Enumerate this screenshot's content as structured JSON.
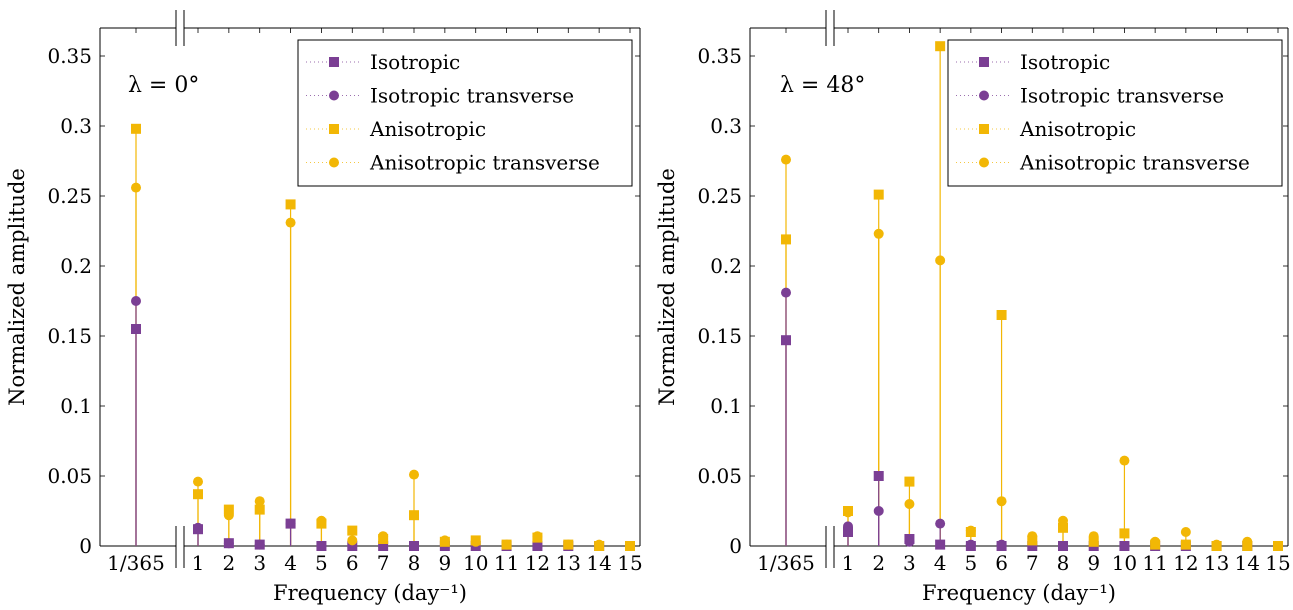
{
  "colors": {
    "isotropic": "#7b3f94",
    "anisotropic": "#f2b705"
  },
  "chart_data": [
    {
      "type": "stem",
      "annotation": "λ = 0°",
      "xlabel": "Frequency (day⁻¹)",
      "ylabel": "Normalized amplitude",
      "categories": [
        "1/365",
        "1",
        "2",
        "3",
        "4",
        "5",
        "6",
        "7",
        "8",
        "9",
        "10",
        "11",
        "12",
        "13",
        "14",
        "15"
      ],
      "ylim": [
        0,
        0.37
      ],
      "yticks": [
        "0",
        "0.05",
        "0.1",
        "0.15",
        "0.2",
        "0.25",
        "0.3",
        "0.35"
      ],
      "ytick_values": [
        0,
        0.05,
        0.1,
        0.15,
        0.2,
        0.25,
        0.3,
        0.35
      ],
      "legend": {
        "position": "top-right",
        "entries": [
          "Isotropic",
          "Isotropic transverse",
          "Anisotropic",
          "Anisotropic transverse"
        ]
      },
      "series": [
        {
          "name": "Isotropic",
          "marker": "square",
          "color": "#7b3f94",
          "values": [
            0.155,
            0.012,
            0.002,
            0.001,
            0.016,
            0.0,
            0.0,
            0.0,
            0.0,
            0.0,
            0.0,
            0.0,
            0.0,
            0.0,
            0.0,
            0.0
          ]
        },
        {
          "name": "Isotropic transverse",
          "marker": "circle",
          "color": "#7b3f94",
          "values": [
            0.175,
            0.013,
            0.002,
            0.001,
            0.016,
            0.0,
            0.0,
            0.0,
            0.0,
            0.0,
            0.0,
            0.0,
            0.0,
            0.0,
            0.0,
            0.0
          ]
        },
        {
          "name": "Anisotropic",
          "marker": "square",
          "color": "#f2b705",
          "values": [
            0.298,
            0.037,
            0.026,
            0.026,
            0.244,
            0.016,
            0.011,
            0.005,
            0.022,
            0.003,
            0.004,
            0.001,
            0.006,
            0.001,
            0.0,
            0.0
          ]
        },
        {
          "name": "Anisotropic transverse",
          "marker": "circle",
          "color": "#f2b705",
          "values": [
            0.256,
            0.046,
            0.022,
            0.032,
            0.231,
            0.018,
            0.004,
            0.007,
            0.051,
            0.004,
            0.003,
            0.001,
            0.007,
            0.001,
            0.001,
            0.0
          ]
        }
      ]
    },
    {
      "type": "stem",
      "annotation": "λ = 48°",
      "xlabel": "Frequency (day⁻¹)",
      "ylabel": "Normalized amplitude",
      "categories": [
        "1/365",
        "1",
        "2",
        "3",
        "4",
        "5",
        "6",
        "7",
        "8",
        "9",
        "10",
        "11",
        "12",
        "13",
        "14",
        "15"
      ],
      "ylim": [
        0,
        0.37
      ],
      "yticks": [
        "0",
        "0.05",
        "0.1",
        "0.15",
        "0.2",
        "0.25",
        "0.3",
        "0.35"
      ],
      "ytick_values": [
        0,
        0.05,
        0.1,
        0.15,
        0.2,
        0.25,
        0.3,
        0.35
      ],
      "legend": {
        "position": "top-right",
        "entries": [
          "Isotropic",
          "Isotropic transverse",
          "Anisotropic",
          "Anisotropic transverse"
        ]
      },
      "series": [
        {
          "name": "Isotropic",
          "marker": "square",
          "color": "#7b3f94",
          "values": [
            0.147,
            0.01,
            0.05,
            0.005,
            0.001,
            0.0,
            0.0,
            0.0,
            0.0,
            0.0,
            0.0,
            0.0,
            0.0,
            0.0,
            0.0,
            0.0
          ]
        },
        {
          "name": "Isotropic transverse",
          "marker": "circle",
          "color": "#7b3f94",
          "values": [
            0.181,
            0.014,
            0.025,
            0.003,
            0.016,
            0.001,
            0.001,
            0.0,
            0.0,
            0.0,
            0.0,
            0.0,
            0.0,
            0.0,
            0.0,
            0.0
          ]
        },
        {
          "name": "Anisotropic",
          "marker": "square",
          "color": "#f2b705",
          "values": [
            0.219,
            0.025,
            0.251,
            0.046,
            0.357,
            0.01,
            0.165,
            0.004,
            0.013,
            0.003,
            0.009,
            0.001,
            0.001,
            0.0,
            0.0,
            0.0
          ]
        },
        {
          "name": "Anisotropic transverse",
          "marker": "circle",
          "color": "#f2b705",
          "values": [
            0.276,
            0.024,
            0.223,
            0.03,
            0.204,
            0.011,
            0.032,
            0.007,
            0.018,
            0.007,
            0.061,
            0.003,
            0.01,
            0.001,
            0.003,
            0.0
          ]
        }
      ]
    }
  ]
}
